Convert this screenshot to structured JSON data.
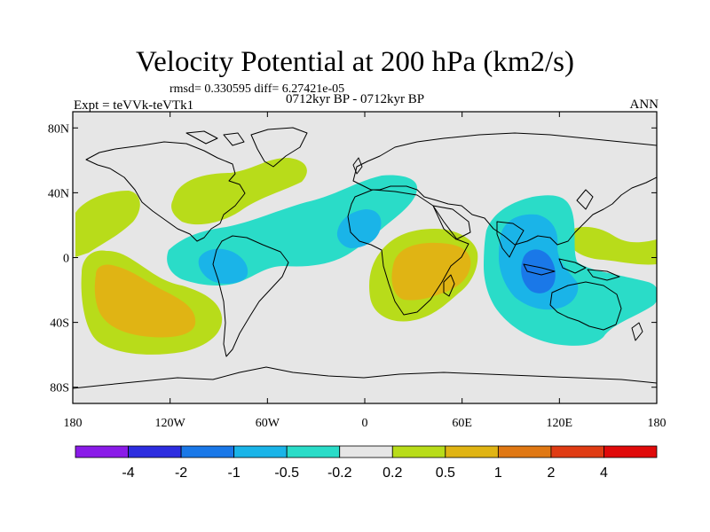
{
  "header": {
    "title": "Velocity Potential at 200 hPa (km2/s)",
    "stats": "rmsd= 0.330595 diff= 6.27421e-05",
    "experiment": "Expt = teVVk-teVTk1",
    "period": "0712kyr BP - 0712kyr BP",
    "season": "ANN"
  },
  "map": {
    "projection": "cylindrical-equidistant",
    "background_color": "#e6e6e6",
    "lat_ticks": [
      "80N",
      "40N",
      "0",
      "40S",
      "80S"
    ],
    "lat_tick_values": [
      80,
      40,
      0,
      -40,
      -80
    ],
    "lon_ticks": [
      "180",
      "120W",
      "60W",
      "0",
      "60E",
      "120E",
      "180"
    ],
    "lon_tick_values": [
      -180,
      -120,
      -60,
      0,
      60,
      120,
      180
    ],
    "lon_range": [
      -180,
      180
    ],
    "lat_range": [
      -90,
      90
    ]
  },
  "colorbar": {
    "labels": [
      "-4",
      "-2",
      "-1",
      "-0.5",
      "-0.2",
      "0.2",
      "0.5",
      "1",
      "2",
      "4"
    ],
    "colors": [
      "#8a1be8",
      "#2d2de0",
      "#1a78e8",
      "#1ab4e8",
      "#2adcc8",
      "#e6e6e6",
      "#b8dc1a",
      "#e0b414",
      "#e07814",
      "#e03c14",
      "#e00a0a"
    ]
  },
  "anomalies": [
    {
      "label": "N Atlantic positive",
      "level": "0.2"
    },
    {
      "label": "N Pacific positive",
      "level": "0.2"
    },
    {
      "label": "S Pacific maximum",
      "level": "0.5"
    },
    {
      "label": "Africa maximum",
      "level": "0.5"
    },
    {
      "label": "Maritime Continent minimum",
      "level": "-1"
    },
    {
      "label": "Tropical Atlantic minimum",
      "level": "-0.5"
    }
  ]
}
